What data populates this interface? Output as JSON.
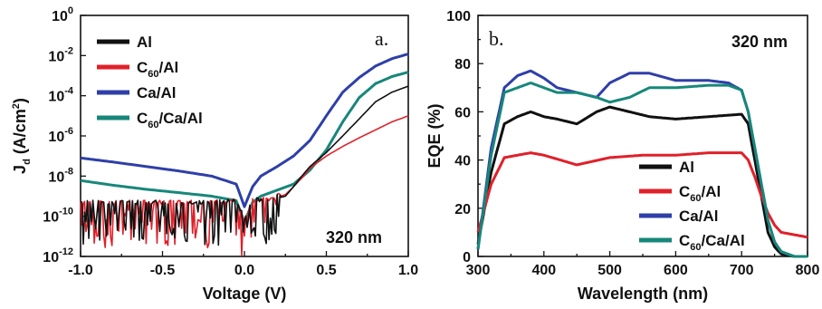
{
  "chart_data": [
    {
      "type": "line",
      "panel_label": "a.",
      "annotation": "320 nm",
      "xlabel": "Voltage (V)",
      "ylabel": "J_d (A/cm^2)",
      "ylabel_parts": {
        "base": "J",
        "sub": "d",
        "rest": " (A/cm",
        "sup": "2",
        "close": ")"
      },
      "yscale": "log",
      "xlim": [
        -1.0,
        1.0
      ],
      "ylim": [
        1e-12,
        1
      ],
      "x_ticks": [
        "-1.0",
        "-0.5",
        "0.0",
        "0.5",
        "1.0"
      ],
      "y_ticks": [
        {
          "base": "10",
          "exp": "0"
        },
        {
          "base": "10",
          "exp": "-2"
        },
        {
          "base": "10",
          "exp": "-4"
        },
        {
          "base": "10",
          "exp": "-6"
        },
        {
          "base": "10",
          "exp": "-8"
        },
        {
          "base": "10",
          "exp": "-10"
        },
        {
          "base": "10",
          "exp": "-12"
        }
      ],
      "legend_position": "top-left",
      "series": [
        {
          "name": "Al",
          "legend": {
            "pre": "Al",
            "sub": "",
            "post": ""
          },
          "color": "#111111",
          "noisy": true,
          "x": [
            -1.0,
            -0.8,
            -0.6,
            -0.4,
            -0.2,
            -0.05,
            0.0,
            0.05,
            0.15,
            0.25,
            0.3,
            0.35,
            0.4,
            0.5,
            0.6,
            0.7,
            0.8,
            0.9,
            1.0
          ],
          "y": [
            4e-10,
            4e-10,
            4e-10,
            4e-10,
            4e-10,
            5e-10,
            6e-11,
            5e-10,
            6e-10,
            1e-09,
            3e-09,
            1e-08,
            3e-08,
            1.5e-07,
            1e-06,
            7e-06,
            5e-05,
            0.00015,
            0.0003
          ]
        },
        {
          "name": "C60/Al",
          "legend": {
            "pre": "C",
            "sub": "60",
            "post": "/Al"
          },
          "color": "#e0202a",
          "noisy": true,
          "x": [
            -1.0,
            -0.8,
            -0.6,
            -0.4,
            -0.2,
            -0.05,
            0.0,
            0.05,
            0.15,
            0.25,
            0.3,
            0.35,
            0.4,
            0.5,
            0.6,
            0.7,
            0.8,
            0.9,
            1.0
          ],
          "y": [
            4e-10,
            4e-10,
            4e-10,
            4e-10,
            4e-10,
            5e-10,
            6e-11,
            5e-10,
            6e-10,
            1.2e-09,
            3e-09,
            8e-09,
            2.5e-08,
            1e-07,
            3e-07,
            8e-07,
            2e-06,
            5e-06,
            1e-05
          ]
        },
        {
          "name": "Ca/Al",
          "legend": {
            "pre": "Ca/Al",
            "sub": "",
            "post": ""
          },
          "color": "#2e3fa8",
          "noisy": false,
          "x": [
            -1.0,
            -0.8,
            -0.6,
            -0.4,
            -0.2,
            -0.05,
            0.0,
            0.05,
            0.1,
            0.2,
            0.3,
            0.4,
            0.5,
            0.6,
            0.7,
            0.8,
            0.9,
            1.0
          ],
          "y": [
            8e-08,
            5e-08,
            3e-08,
            1.8e-08,
            1e-08,
            4e-09,
            3e-10,
            3e-09,
            1e-08,
            3e-08,
            1e-07,
            6e-07,
            1e-05,
            0.00015,
            0.0008,
            0.003,
            0.007,
            0.012
          ]
        },
        {
          "name": "C60/Ca/Al",
          "legend": {
            "pre": "C",
            "sub": "60",
            "post": "/Ca/Al"
          },
          "color": "#17877a",
          "noisy": false,
          "x": [
            -1.0,
            -0.8,
            -0.6,
            -0.4,
            -0.2,
            -0.05,
            0.0,
            0.05,
            0.1,
            0.2,
            0.3,
            0.4,
            0.5,
            0.6,
            0.7,
            0.8,
            0.9,
            1.0
          ],
          "y": [
            6e-09,
            3.5e-09,
            2.2e-09,
            1.5e-09,
            1e-09,
            6e-10,
            5e-11,
            5e-10,
            1e-09,
            2e-09,
            4e-09,
            2e-08,
            2e-07,
            5e-06,
            8e-05,
            0.0004,
            0.0009,
            0.0015
          ]
        }
      ]
    },
    {
      "type": "line",
      "panel_label": "b.",
      "annotation": "320 nm",
      "xlabel": "Wavelength (nm)",
      "ylabel": "EQE (%)",
      "xlim": [
        300,
        800
      ],
      "ylim": [
        0,
        100
      ],
      "x_ticks": [
        "300",
        "400",
        "500",
        "600",
        "700",
        "800"
      ],
      "y_ticks": [
        "0",
        "20",
        "40",
        "60",
        "80",
        "100"
      ],
      "legend_position": "bottom-right",
      "series": [
        {
          "name": "Al",
          "legend": {
            "pre": "Al",
            "sub": "",
            "post": ""
          },
          "color": "#111111",
          "x": [
            300,
            320,
            340,
            360,
            380,
            400,
            420,
            450,
            480,
            500,
            530,
            560,
            600,
            650,
            700,
            710,
            720,
            730,
            740,
            750,
            760,
            780,
            800
          ],
          "y": [
            5,
            35,
            55,
            58,
            60,
            58,
            57,
            55,
            60,
            62,
            60,
            58,
            57,
            58,
            59,
            55,
            40,
            25,
            10,
            4,
            1,
            0,
            0
          ]
        },
        {
          "name": "C60/Al",
          "legend": {
            "pre": "C",
            "sub": "60",
            "post": "/Al"
          },
          "color": "#e0202a",
          "x": [
            300,
            320,
            340,
            360,
            380,
            400,
            450,
            500,
            550,
            600,
            650,
            700,
            710,
            720,
            730,
            740,
            750,
            760,
            780,
            800
          ],
          "y": [
            10,
            30,
            41,
            42,
            43,
            42,
            38,
            41,
            42,
            42,
            43,
            43,
            40,
            33,
            25,
            18,
            13,
            10,
            9,
            8
          ]
        },
        {
          "name": "Ca/Al",
          "legend": {
            "pre": "Ca/Al",
            "sub": "",
            "post": ""
          },
          "color": "#2e3fa8",
          "x": [
            300,
            320,
            340,
            360,
            380,
            400,
            420,
            450,
            480,
            500,
            530,
            560,
            600,
            650,
            680,
            700,
            710,
            720,
            730,
            740,
            750,
            760,
            780,
            800
          ],
          "y": [
            3,
            45,
            70,
            75,
            77,
            74,
            70,
            68,
            66,
            72,
            76,
            76,
            73,
            73,
            72,
            69,
            60,
            45,
            30,
            15,
            6,
            2,
            0,
            0
          ]
        },
        {
          "name": "C60/Ca/Al",
          "legend": {
            "pre": "C",
            "sub": "60",
            "post": "/Ca/Al"
          },
          "color": "#17877a",
          "x": [
            300,
            320,
            340,
            360,
            380,
            400,
            420,
            450,
            480,
            500,
            530,
            560,
            600,
            650,
            680,
            700,
            710,
            720,
            730,
            740,
            750,
            760,
            780,
            800
          ],
          "y": [
            3,
            42,
            68,
            70,
            72,
            70,
            68,
            68,
            66,
            64,
            66,
            70,
            70,
            71,
            71,
            69,
            60,
            45,
            30,
            15,
            6,
            2,
            0,
            0
          ]
        }
      ]
    }
  ]
}
